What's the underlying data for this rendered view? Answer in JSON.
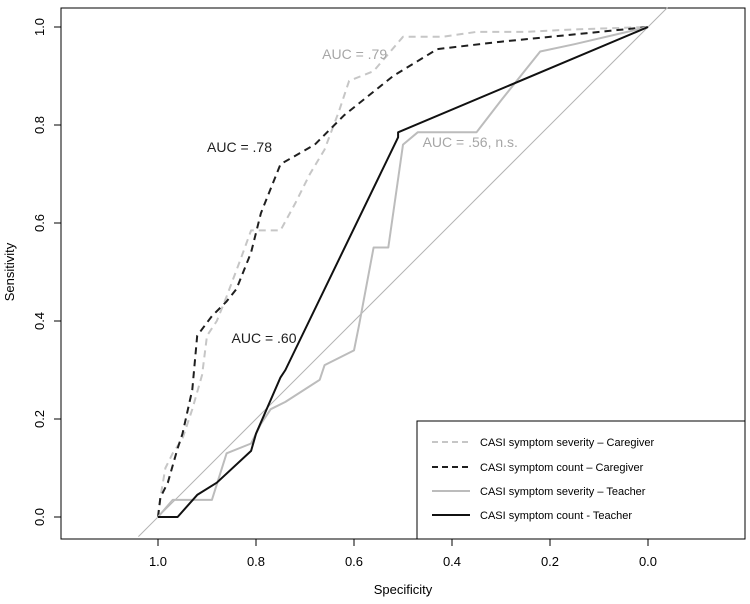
{
  "chart_data": {
    "type": "line",
    "title": "",
    "xlabel": "Specificity",
    "ylabel": "Sensitivity",
    "x_reversed": true,
    "xlim": [
      1.2,
      -0.2
    ],
    "ylim": [
      -0.04,
      1.04
    ],
    "x_ticks": [
      1.0,
      0.8,
      0.6,
      0.4,
      0.2,
      0.0
    ],
    "x_tick_labels": [
      "1.0",
      "0.8",
      "0.6",
      "0.4",
      "0.2",
      "0.0"
    ],
    "y_ticks": [
      0.0,
      0.2,
      0.4,
      0.6,
      0.8,
      1.0
    ],
    "y_tick_labels": [
      "0.0",
      "0.2",
      "0.4",
      "0.6",
      "0.8",
      "1.0"
    ],
    "reference_line": {
      "from": [
        1.04,
        -0.04
      ],
      "to": [
        -0.04,
        1.04
      ],
      "color": "#b3b3b3"
    },
    "legend_position": "bottom-right",
    "series": [
      {
        "name": "CASI symptom severity – Caregiver",
        "color": "#c6c6c6",
        "dash": "dashed",
        "width": 2,
        "points": [
          [
            1.0,
            0.0
          ],
          [
            0.995,
            0.04
          ],
          [
            0.985,
            0.1
          ],
          [
            0.97,
            0.13
          ],
          [
            0.95,
            0.16
          ],
          [
            0.93,
            0.22
          ],
          [
            0.91,
            0.29
          ],
          [
            0.9,
            0.37
          ],
          [
            0.88,
            0.4
          ],
          [
            0.86,
            0.45
          ],
          [
            0.83,
            0.53
          ],
          [
            0.81,
            0.585
          ],
          [
            0.75,
            0.585
          ],
          [
            0.72,
            0.64
          ],
          [
            0.69,
            0.7
          ],
          [
            0.66,
            0.75
          ],
          [
            0.63,
            0.83
          ],
          [
            0.61,
            0.89
          ],
          [
            0.56,
            0.91
          ],
          [
            0.5,
            0.98
          ],
          [
            0.42,
            0.98
          ],
          [
            0.35,
            0.99
          ],
          [
            0.25,
            0.99
          ],
          [
            0.15,
            0.995
          ],
          [
            0.0,
            1.0
          ]
        ]
      },
      {
        "name": "CASI symptom count – Caregiver",
        "color": "#1f1f1f",
        "dash": "dashed",
        "width": 2,
        "points": [
          [
            1.0,
            0.0
          ],
          [
            0.995,
            0.04
          ],
          [
            0.98,
            0.07
          ],
          [
            0.96,
            0.14
          ],
          [
            0.95,
            0.17
          ],
          [
            0.93,
            0.26
          ],
          [
            0.92,
            0.37
          ],
          [
            0.89,
            0.41
          ],
          [
            0.86,
            0.44
          ],
          [
            0.84,
            0.465
          ],
          [
            0.81,
            0.54
          ],
          [
            0.79,
            0.62
          ],
          [
            0.75,
            0.72
          ],
          [
            0.68,
            0.76
          ],
          [
            0.62,
            0.82
          ],
          [
            0.52,
            0.9
          ],
          [
            0.43,
            0.955
          ],
          [
            0.3,
            0.97
          ],
          [
            0.15,
            0.985
          ],
          [
            0.0,
            1.0
          ]
        ]
      },
      {
        "name": "CASI symptom severity – Teacher",
        "color": "#bcbcbc",
        "dash": "solid",
        "width": 2,
        "points": [
          [
            1.0,
            0.0
          ],
          [
            0.97,
            0.035
          ],
          [
            0.89,
            0.035
          ],
          [
            0.86,
            0.13
          ],
          [
            0.81,
            0.15
          ],
          [
            0.79,
            0.19
          ],
          [
            0.77,
            0.22
          ],
          [
            0.74,
            0.235
          ],
          [
            0.67,
            0.28
          ],
          [
            0.66,
            0.31
          ],
          [
            0.6,
            0.34
          ],
          [
            0.59,
            0.39
          ],
          [
            0.56,
            0.55
          ],
          [
            0.53,
            0.55
          ],
          [
            0.5,
            0.76
          ],
          [
            0.47,
            0.785
          ],
          [
            0.35,
            0.785
          ],
          [
            0.3,
            0.85
          ],
          [
            0.22,
            0.95
          ],
          [
            0.15,
            0.965
          ],
          [
            0.0,
            1.0
          ]
        ]
      },
      {
        "name": "CASI symptom count - Teacher",
        "color": "#111111",
        "dash": "solid",
        "width": 2,
        "points": [
          [
            1.0,
            0.0
          ],
          [
            0.96,
            0.0
          ],
          [
            0.92,
            0.045
          ],
          [
            0.88,
            0.07
          ],
          [
            0.81,
            0.135
          ],
          [
            0.8,
            0.17
          ],
          [
            0.75,
            0.285
          ],
          [
            0.74,
            0.3
          ],
          [
            0.51,
            0.775
          ],
          [
            0.51,
            0.785
          ],
          [
            0.0,
            1.0
          ]
        ]
      }
    ],
    "annotations": [
      {
        "text": "AUC = .79",
        "x": 0.665,
        "y": 0.935,
        "color": "#a6a6a6"
      },
      {
        "text": "AUC = .78",
        "x": 0.9,
        "y": 0.745,
        "color": "#1f1f1f"
      },
      {
        "text": "AUC = .56, n.s.",
        "x": 0.46,
        "y": 0.755,
        "color": "#a6a6a6"
      },
      {
        "text": "AUC = .60",
        "x": 0.85,
        "y": 0.355,
        "color": "#1f1f1f"
      }
    ]
  }
}
